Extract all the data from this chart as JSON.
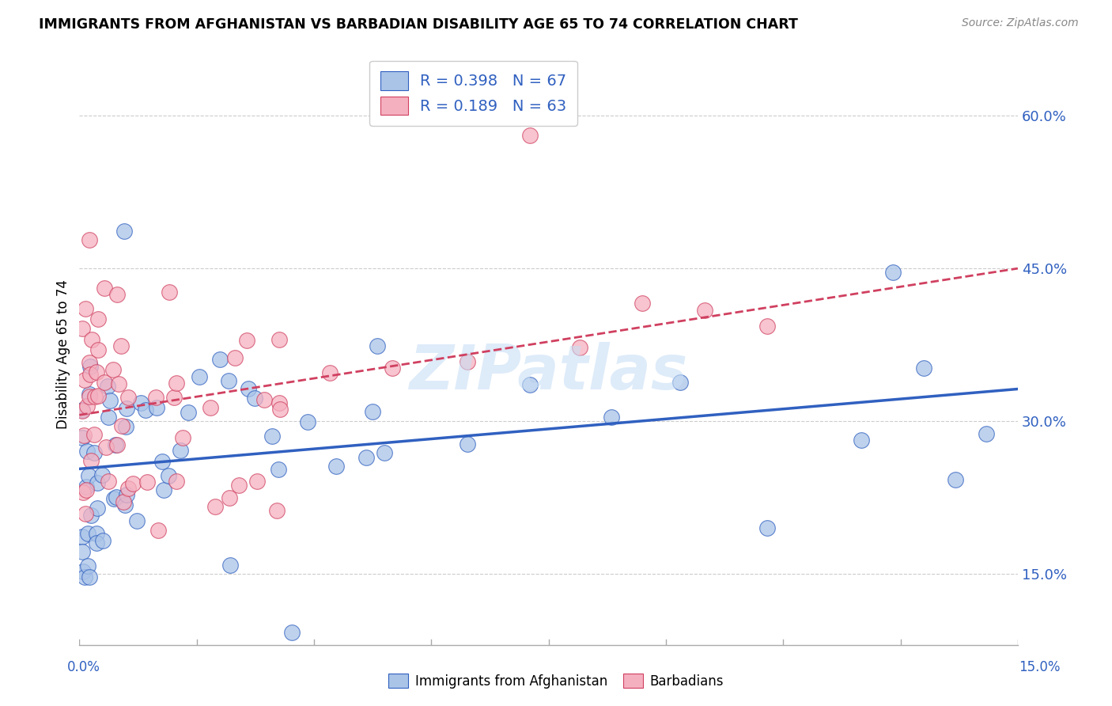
{
  "title": "IMMIGRANTS FROM AFGHANISTAN VS BARBADIAN DISABILITY AGE 65 TO 74 CORRELATION CHART",
  "source": "Source: ZipAtlas.com",
  "ylabel": "Disability Age 65 to 74",
  "ytick_values": [
    0.15,
    0.3,
    0.45,
    0.6
  ],
  "xmin": 0.0,
  "xmax": 0.15,
  "ymin": 0.08,
  "ymax": 0.65,
  "legend_label1": "Immigrants from Afghanistan",
  "legend_label2": "Barbadians",
  "R1": 0.398,
  "N1": 67,
  "R2": 0.189,
  "N2": 63,
  "color_blue": "#aac4e8",
  "color_pink": "#f5b0c0",
  "trendline_blue": "#3060c0",
  "trendline_pink": "#d04060",
  "watermark_color": "#c8dff5"
}
